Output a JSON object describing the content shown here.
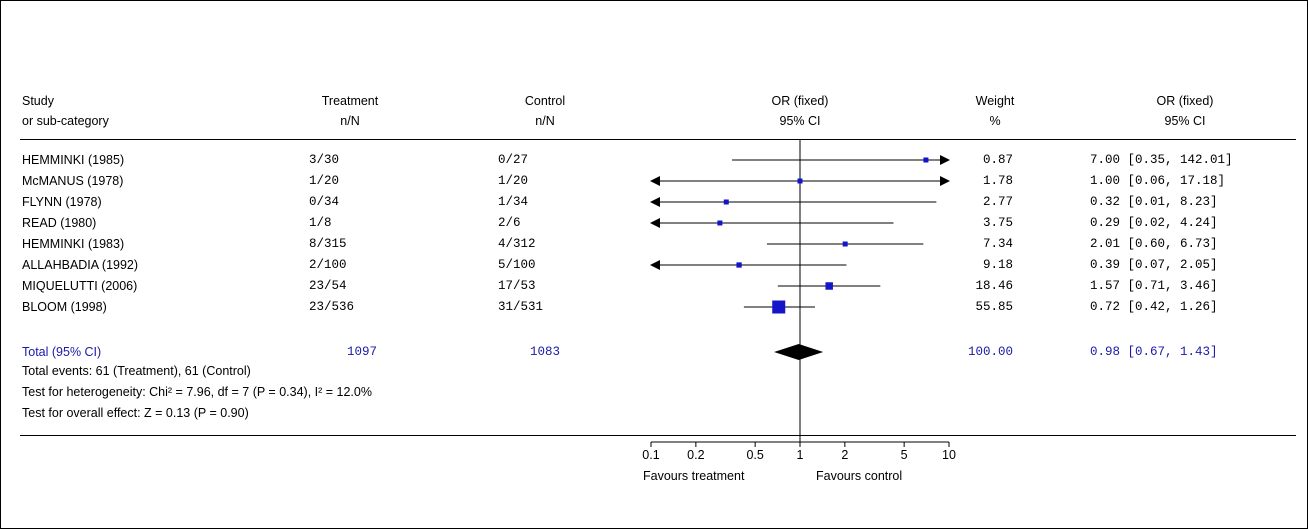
{
  "chart_data": {
    "type": "forest",
    "headers": {
      "study": [
        "Study",
        "or sub-category"
      ],
      "treatment": [
        "Treatment",
        "n/N"
      ],
      "control": [
        "Control",
        "n/N"
      ],
      "effect": [
        "OR (fixed)",
        "95% CI"
      ],
      "weight": [
        "Weight",
        "%"
      ],
      "effect_text": [
        "OR (fixed)",
        "95% CI"
      ]
    },
    "studies": [
      {
        "name": "HEMMINKI (1985)",
        "treatment": "3/30",
        "control": "0/27",
        "weight": "0.87",
        "ci_text": "7.00 [0.35, 142.01]",
        "or": 7.0,
        "lo": 0.35,
        "hi": 142.01
      },
      {
        "name": "McMANUS (1978)",
        "treatment": "1/20",
        "control": "1/20",
        "weight": "1.78",
        "ci_text": "1.00 [0.06, 17.18]",
        "or": 1.0,
        "lo": 0.06,
        "hi": 17.18
      },
      {
        "name": "FLYNN (1978)",
        "treatment": "0/34",
        "control": "1/34",
        "weight": "2.77",
        "ci_text": "0.32 [0.01, 8.23]",
        "or": 0.32,
        "lo": 0.01,
        "hi": 8.23
      },
      {
        "name": "READ (1980)",
        "treatment": "1/8",
        "control": "2/6",
        "weight": "3.75",
        "ci_text": "0.29 [0.02, 4.24]",
        "or": 0.29,
        "lo": 0.02,
        "hi": 4.24
      },
      {
        "name": "HEMMINKI (1983)",
        "treatment": "8/315",
        "control": "4/312",
        "weight": "7.34",
        "ci_text": "2.01 [0.60, 6.73]",
        "or": 2.01,
        "lo": 0.6,
        "hi": 6.73
      },
      {
        "name": "ALLAHBADIA (1992)",
        "treatment": "2/100",
        "control": "5/100",
        "weight": "9.18",
        "ci_text": "0.39 [0.07, 2.05]",
        "or": 0.39,
        "lo": 0.07,
        "hi": 2.05
      },
      {
        "name": "MIQUELUTTI (2006)",
        "treatment": "23/54",
        "control": "17/53",
        "weight": "18.46",
        "ci_text": "1.57 [0.71, 3.46]",
        "or": 1.57,
        "lo": 0.71,
        "hi": 3.46
      },
      {
        "name": "BLOOM (1998)",
        "treatment": "23/536",
        "control": "31/531",
        "weight": "55.85",
        "ci_text": "0.72 [0.42, 1.26]",
        "or": 0.72,
        "lo": 0.42,
        "hi": 1.26
      }
    ],
    "total": {
      "label": "Total (95% CI)",
      "treatment": "1097",
      "control": "1083",
      "weight": "100.00",
      "ci_text": "0.98 [0.67, 1.43]",
      "or": 0.98,
      "lo": 0.67,
      "hi": 1.43
    },
    "footnotes": [
      "Total events: 61 (Treatment), 61 (Control)",
      "Test for heterogeneity: Chi² = 7.96, df = 7 (P = 0.34), I² = 12.0%",
      "Test for overall effect: Z = 0.13 (P = 0.90)"
    ],
    "x_scale": "log",
    "xlim": [
      0.1,
      10
    ],
    "x_ticks": [
      0.1,
      0.2,
      0.5,
      1,
      2,
      5,
      10
    ],
    "x_tick_labels": [
      "0.1",
      "0.2",
      "0.5",
      "1",
      "2",
      "5",
      "10"
    ],
    "favours_left": "Favours treatment",
    "favours_right": "Favours control",
    "colors": {
      "marker": "#1414c8",
      "total_text": "#1a1aa8",
      "diamond": "#000000"
    }
  }
}
